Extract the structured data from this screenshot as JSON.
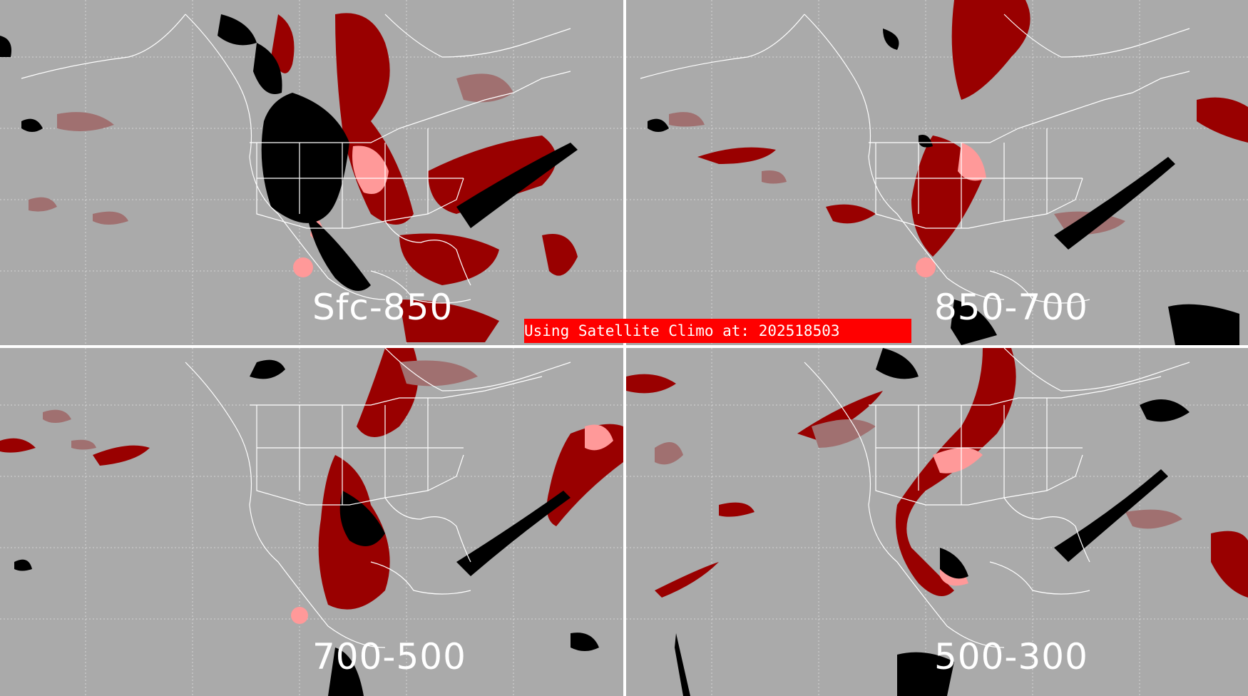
{
  "panels": [
    {
      "id": "tl",
      "layer_label": "Sfc-850"
    },
    {
      "id": "tr",
      "layer_label": "850-700"
    },
    {
      "id": "bl",
      "layer_label": "700-500"
    },
    {
      "id": "br",
      "layer_label": "500-300"
    }
  ],
  "banner": {
    "text": "Using Satellite Climo at: 202518503"
  },
  "colors": {
    "background": "#aaaaaa",
    "map_lines": "#ffffff",
    "grid": "#dddddd",
    "black_class": "#000000",
    "dark_red_class": "#990000",
    "red_class": "#dd1111",
    "pink_class": "#ff9999",
    "gray_rose_class": "#a07070",
    "banner": "#ff0000"
  }
}
